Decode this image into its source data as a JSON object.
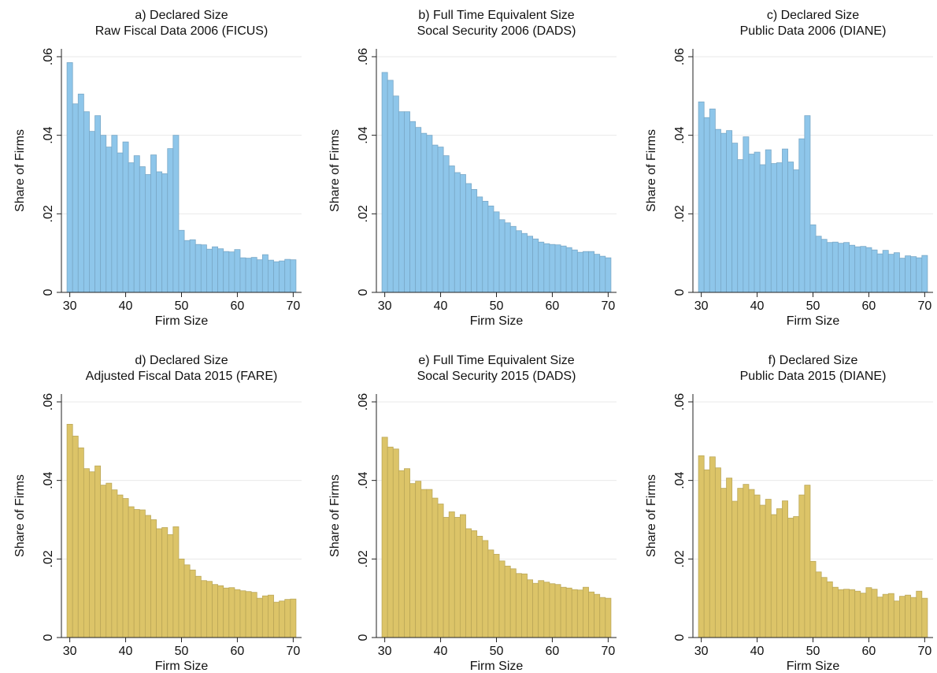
{
  "chart_data": [
    {
      "type": "histogram",
      "title": "a) Declared Size",
      "subtitle": "Raw Fiscal Data 2006 (FICUS)",
      "xlabel": "Firm Size",
      "ylabel": "Share of Firms",
      "color": "#8ec6ea",
      "bins": [
        29.5,
        30.5,
        31.5,
        32.5,
        33.5,
        34.5,
        35.5,
        36.5,
        37.5,
        38.5,
        39.5,
        40.5,
        41.5,
        42.5,
        43.5,
        44.5,
        45.5,
        46.5,
        47.5,
        48.5,
        49.5,
        50.5,
        51.5,
        52.5,
        53.5,
        54.5,
        55.5,
        56.5,
        57.5,
        58.5,
        59.5,
        60.5,
        61.5,
        62.5,
        63.5,
        64.5,
        65.5,
        66.5,
        67.5,
        68.5,
        69.5,
        70.5
      ],
      "values": [
        0.0585,
        0.048,
        0.0505,
        0.046,
        0.041,
        0.045,
        0.04,
        0.037,
        0.04,
        0.0355,
        0.0383,
        0.033,
        0.0348,
        0.032,
        0.03,
        0.035,
        0.0307,
        0.0302,
        0.0366,
        0.04,
        0.0158,
        0.0132,
        0.0134,
        0.0122,
        0.0121,
        0.011,
        0.0116,
        0.0111,
        0.0104,
        0.0103,
        0.0109,
        0.0088,
        0.0087,
        0.0089,
        0.0083,
        0.0096,
        0.0082,
        0.0078,
        0.008,
        0.0084,
        0.0083
      ],
      "xlim": [
        28.5,
        71.5
      ],
      "xticks": [
        30,
        40,
        50,
        60,
        70
      ],
      "ylim": [
        0,
        0.062
      ],
      "yticks": [
        0,
        {
          "value": 0.02,
          "label": ".02"
        },
        {
          "value": 0.04,
          "label": ".04"
        },
        {
          "value": 0.06,
          "label": ".06"
        }
      ],
      "grid": true
    },
    {
      "type": "histogram",
      "title": "b) Full Time Equivalent Size",
      "subtitle": "Socal Security 2006 (DADS)",
      "xlabel": "Firm Size",
      "ylabel": "Share of Firms",
      "color": "#8ec6ea",
      "bins": [
        29.5,
        30.5,
        31.5,
        32.5,
        33.5,
        34.5,
        35.5,
        36.5,
        37.5,
        38.5,
        39.5,
        40.5,
        41.5,
        42.5,
        43.5,
        44.5,
        45.5,
        46.5,
        47.5,
        48.5,
        49.5,
        50.5,
        51.5,
        52.5,
        53.5,
        54.5,
        55.5,
        56.5,
        57.5,
        58.5,
        59.5,
        60.5,
        61.5,
        62.5,
        63.5,
        64.5,
        65.5,
        66.5,
        67.5,
        68.5,
        69.5,
        70.5
      ],
      "values": [
        0.056,
        0.054,
        0.05,
        0.046,
        0.046,
        0.0435,
        0.042,
        0.0405,
        0.04,
        0.0375,
        0.037,
        0.0348,
        0.0322,
        0.0305,
        0.03,
        0.0277,
        0.0262,
        0.0243,
        0.0232,
        0.022,
        0.0205,
        0.0185,
        0.0177,
        0.0168,
        0.0157,
        0.015,
        0.0143,
        0.0136,
        0.0128,
        0.0124,
        0.0122,
        0.0121,
        0.0118,
        0.0114,
        0.0108,
        0.0102,
        0.0104,
        0.0104,
        0.0097,
        0.0092,
        0.0088
      ],
      "xlim": [
        28.5,
        71.5
      ],
      "xticks": [
        30,
        40,
        50,
        60,
        70
      ],
      "ylim": [
        0,
        0.062
      ],
      "yticks": [
        0,
        {
          "value": 0.02,
          "label": ".02"
        },
        {
          "value": 0.04,
          "label": ".04"
        },
        {
          "value": 0.06,
          "label": ".06"
        }
      ],
      "grid": true
    },
    {
      "type": "histogram",
      "title": "c) Declared Size",
      "subtitle": "Public Data 2006 (DIANE)",
      "xlabel": "Firm Size",
      "ylabel": "Share of Firms",
      "color": "#8ec6ea",
      "bins": [
        29.5,
        30.5,
        31.5,
        32.5,
        33.5,
        34.5,
        35.5,
        36.5,
        37.5,
        38.5,
        39.5,
        40.5,
        41.5,
        42.5,
        43.5,
        44.5,
        45.5,
        46.5,
        47.5,
        48.5,
        49.5,
        50.5,
        51.5,
        52.5,
        53.5,
        54.5,
        55.5,
        56.5,
        57.5,
        58.5,
        59.5,
        60.5,
        61.5,
        62.5,
        63.5,
        64.5,
        65.5,
        66.5,
        67.5,
        68.5,
        69.5,
        70.5
      ],
      "values": [
        0.0485,
        0.0445,
        0.0467,
        0.0415,
        0.0405,
        0.0412,
        0.038,
        0.0338,
        0.0396,
        0.0352,
        0.0357,
        0.0325,
        0.0363,
        0.0328,
        0.033,
        0.0365,
        0.0332,
        0.0312,
        0.0391,
        0.045,
        0.0172,
        0.0143,
        0.0135,
        0.0127,
        0.0128,
        0.0125,
        0.0127,
        0.012,
        0.0116,
        0.0117,
        0.0114,
        0.0108,
        0.0098,
        0.0107,
        0.0097,
        0.0101,
        0.0087,
        0.0093,
        0.0091,
        0.0088,
        0.0094
      ],
      "xlim": [
        28.5,
        71.5
      ],
      "xticks": [
        30,
        40,
        50,
        60,
        70
      ],
      "ylim": [
        0,
        0.062
      ],
      "yticks": [
        0,
        {
          "value": 0.02,
          "label": ".02"
        },
        {
          "value": 0.04,
          "label": ".04"
        },
        {
          "value": 0.06,
          "label": ".06"
        }
      ],
      "grid": true
    },
    {
      "type": "histogram",
      "title": "d) Declared Size",
      "subtitle": "Adjusted Fiscal Data 2015 (FARE)",
      "xlabel": "Firm Size",
      "ylabel": "Share of Firms",
      "color": "#dcc468",
      "bins": [
        29.5,
        30.5,
        31.5,
        32.5,
        33.5,
        34.5,
        35.5,
        36.5,
        37.5,
        38.5,
        39.5,
        40.5,
        41.5,
        42.5,
        43.5,
        44.5,
        45.5,
        46.5,
        47.5,
        48.5,
        49.5,
        50.5,
        51.5,
        52.5,
        53.5,
        54.5,
        55.5,
        56.5,
        57.5,
        58.5,
        59.5,
        60.5,
        61.5,
        62.5,
        63.5,
        64.5,
        65.5,
        66.5,
        67.5,
        68.5,
        69.5,
        70.5
      ],
      "values": [
        0.0543,
        0.0513,
        0.0483,
        0.043,
        0.0422,
        0.0437,
        0.0388,
        0.0393,
        0.0376,
        0.0363,
        0.0354,
        0.0333,
        0.0326,
        0.0325,
        0.0311,
        0.03,
        0.0277,
        0.028,
        0.0262,
        0.0282,
        0.02,
        0.0185,
        0.0172,
        0.0156,
        0.0145,
        0.0143,
        0.0135,
        0.0132,
        0.0126,
        0.0127,
        0.0122,
        0.0119,
        0.0117,
        0.0115,
        0.01,
        0.0106,
        0.0108,
        0.009,
        0.0093,
        0.0097,
        0.0098
      ],
      "xlim": [
        28.5,
        71.5
      ],
      "xticks": [
        30,
        40,
        50,
        60,
        70
      ],
      "ylim": [
        0,
        0.062
      ],
      "yticks": [
        0,
        {
          "value": 0.02,
          "label": ".02"
        },
        {
          "value": 0.04,
          "label": ".04"
        },
        {
          "value": 0.06,
          "label": ".06"
        }
      ],
      "grid": true
    },
    {
      "type": "histogram",
      "title": "e) Full Time Equivalent Size",
      "subtitle": "Socal Security 2015 (DADS)",
      "xlabel": "Firm Size",
      "ylabel": "Share of Firms",
      "color": "#dcc468",
      "bins": [
        29.5,
        30.5,
        31.5,
        32.5,
        33.5,
        34.5,
        35.5,
        36.5,
        37.5,
        38.5,
        39.5,
        40.5,
        41.5,
        42.5,
        43.5,
        44.5,
        45.5,
        46.5,
        47.5,
        48.5,
        49.5,
        50.5,
        51.5,
        52.5,
        53.5,
        54.5,
        55.5,
        56.5,
        57.5,
        58.5,
        59.5,
        60.5,
        61.5,
        62.5,
        63.5,
        64.5,
        65.5,
        66.5,
        67.5,
        68.5,
        69.5,
        70.5
      ],
      "values": [
        0.051,
        0.0485,
        0.048,
        0.0425,
        0.043,
        0.0392,
        0.0398,
        0.0377,
        0.0377,
        0.0355,
        0.034,
        0.0306,
        0.032,
        0.0306,
        0.0313,
        0.0277,
        0.0272,
        0.0258,
        0.0247,
        0.0223,
        0.0212,
        0.0195,
        0.0182,
        0.0175,
        0.0163,
        0.0162,
        0.0147,
        0.0138,
        0.0145,
        0.0141,
        0.0137,
        0.0135,
        0.0128,
        0.0126,
        0.0122,
        0.0121,
        0.0128,
        0.0116,
        0.011,
        0.0102,
        0.01
      ],
      "xlim": [
        28.5,
        71.5
      ],
      "xticks": [
        30,
        40,
        50,
        60,
        70
      ],
      "ylim": [
        0,
        0.062
      ],
      "yticks": [
        0,
        {
          "value": 0.02,
          "label": ".02"
        },
        {
          "value": 0.04,
          "label": ".04"
        },
        {
          "value": 0.06,
          "label": ".06"
        }
      ],
      "grid": true
    },
    {
      "type": "histogram",
      "title": "f) Declared Size",
      "subtitle": "Public Data 2015 (DIANE)",
      "xlabel": "Firm Size",
      "ylabel": "Share of Firms",
      "color": "#dcc468",
      "bins": [
        29.5,
        30.5,
        31.5,
        32.5,
        33.5,
        34.5,
        35.5,
        36.5,
        37.5,
        38.5,
        39.5,
        40.5,
        41.5,
        42.5,
        43.5,
        44.5,
        45.5,
        46.5,
        47.5,
        48.5,
        49.5,
        50.5,
        51.5,
        52.5,
        53.5,
        54.5,
        55.5,
        56.5,
        57.5,
        58.5,
        59.5,
        60.5,
        61.5,
        62.5,
        63.5,
        64.5,
        65.5,
        66.5,
        67.5,
        68.5,
        69.5,
        70.5
      ],
      "values": [
        0.0463,
        0.0427,
        0.046,
        0.0432,
        0.038,
        0.0406,
        0.0347,
        0.038,
        0.039,
        0.0377,
        0.0363,
        0.0337,
        0.0352,
        0.0313,
        0.0328,
        0.0348,
        0.0304,
        0.0308,
        0.0363,
        0.0388,
        0.0194,
        0.0167,
        0.0153,
        0.0142,
        0.0128,
        0.0122,
        0.0123,
        0.0122,
        0.0118,
        0.0113,
        0.0127,
        0.0123,
        0.0103,
        0.011,
        0.0112,
        0.0093,
        0.0105,
        0.0108,
        0.0102,
        0.0118,
        0.01
      ],
      "xlim": [
        28.5,
        71.5
      ],
      "xticks": [
        30,
        40,
        50,
        60,
        70
      ],
      "ylim": [
        0,
        0.062
      ],
      "yticks": [
        0,
        {
          "value": 0.02,
          "label": ".02"
        },
        {
          "value": 0.04,
          "label": ".04"
        },
        {
          "value": 0.06,
          "label": ".06"
        }
      ],
      "grid": true
    }
  ]
}
